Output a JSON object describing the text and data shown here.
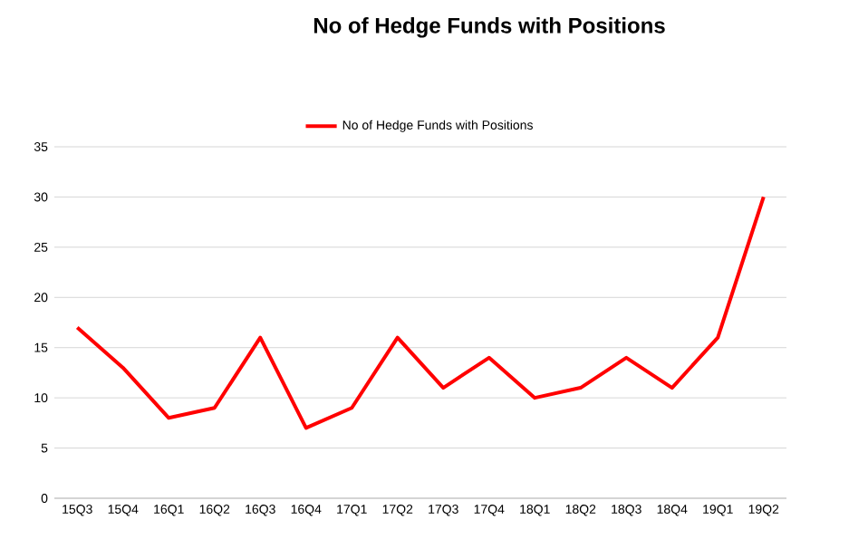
{
  "chart_data": {
    "type": "line",
    "title": "No of Hedge Funds with Positions",
    "categories": [
      "15Q3",
      "15Q4",
      "16Q1",
      "16Q2",
      "16Q3",
      "16Q4",
      "17Q1",
      "17Q2",
      "17Q3",
      "17Q4",
      "18Q1",
      "18Q2",
      "18Q3",
      "18Q4",
      "19Q1",
      "19Q2"
    ],
    "series": [
      {
        "name": "No of Hedge Funds with Positions",
        "color": "#ff0000",
        "values": [
          17,
          13,
          8,
          9,
          16,
          7,
          9,
          16,
          11,
          14,
          10,
          11,
          14,
          11,
          16,
          30
        ]
      }
    ],
    "ylim": [
      0,
      35
    ],
    "yticks": [
      0,
      5,
      10,
      15,
      20,
      25,
      30,
      35
    ],
    "grid": "y",
    "legend": "top"
  }
}
